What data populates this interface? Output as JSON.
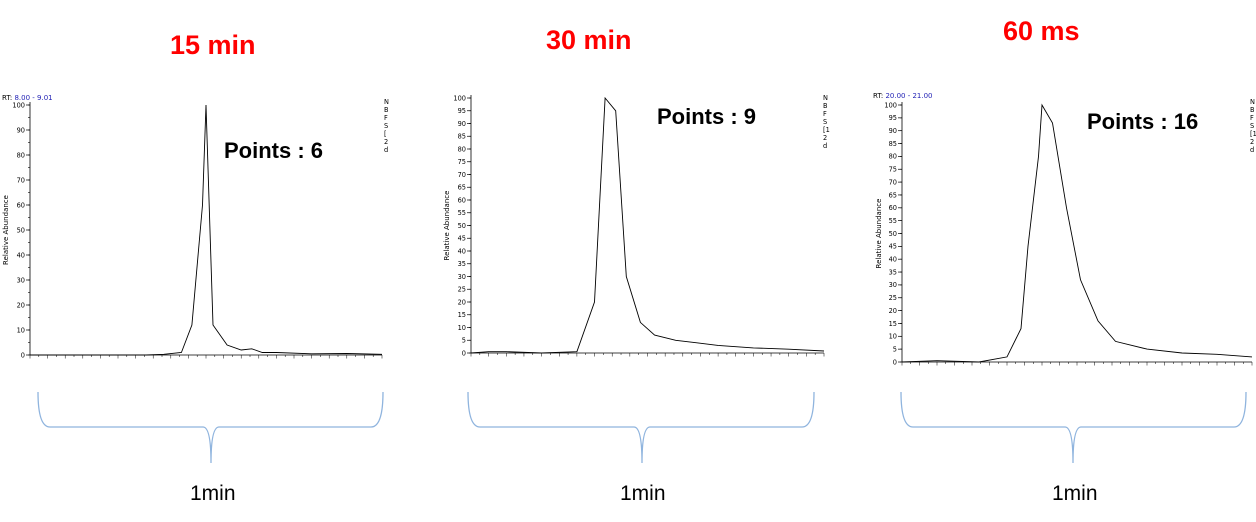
{
  "chart_data": [
    {
      "type": "line",
      "title": "15 min",
      "annotation": "Points : 6",
      "ylabel": "Relative Abundance",
      "rt_label": "RT:",
      "rt_range": "8.00 - 9.01",
      "x_span_label": "1min",
      "legend_glyphs": [
        "N",
        "B",
        "F",
        "S",
        "[",
        "2",
        "d"
      ],
      "ylim": [
        0,
        100
      ],
      "yticks": [
        "0",
        "10",
        "20",
        "30",
        "40",
        "50",
        "60",
        "70",
        "80",
        "90",
        "100"
      ],
      "y_minor_ticks": [
        0,
        5,
        10,
        15,
        20,
        25,
        30,
        35,
        40,
        45,
        50,
        55,
        60,
        65,
        70,
        75,
        80,
        85,
        90,
        95,
        100
      ],
      "xlim": [
        0,
        1
      ],
      "series": [
        {
          "x": [
            0.0,
            0.3,
            0.33,
            0.38,
            0.43,
            0.46,
            0.49,
            0.5,
            0.52,
            0.56,
            0.6,
            0.63,
            0.66,
            0.7,
            0.8,
            0.9,
            1.0
          ],
          "y": [
            0,
            0,
            0,
            0.3,
            1,
            12,
            60,
            100,
            12,
            4,
            2,
            2.5,
            1,
            1,
            0.5,
            0.6,
            0.3
          ]
        }
      ]
    },
    {
      "type": "line",
      "title": "30 min",
      "annotation": "Points : 9",
      "ylabel": "Relative Abundance",
      "rt_label": "",
      "rt_range": "",
      "x_span_label": "1min",
      "legend_glyphs": [
        "N",
        "B",
        "F",
        "S",
        "[1",
        "2",
        "d"
      ],
      "ylim": [
        0,
        100
      ],
      "yticks": [
        "0",
        "5",
        "10",
        "15",
        "20",
        "25",
        "30",
        "35",
        "40",
        "45",
        "50",
        "55",
        "60",
        "65",
        "70",
        "75",
        "80",
        "85",
        "90",
        "95",
        "100"
      ],
      "y_minor_ticks": [
        0,
        5,
        10,
        15,
        20,
        25,
        30,
        35,
        40,
        45,
        50,
        55,
        60,
        65,
        70,
        75,
        80,
        85,
        90,
        95,
        100
      ],
      "xlim": [
        0,
        1
      ],
      "series": [
        {
          "x": [
            0.0,
            0.05,
            0.1,
            0.2,
            0.3,
            0.35,
            0.38,
            0.41,
            0.44,
            0.48,
            0.52,
            0.58,
            0.64,
            0.7,
            0.8,
            0.9,
            1.0
          ],
          "y": [
            0,
            0.5,
            0.5,
            0,
            0.5,
            20,
            100,
            95,
            30,
            12,
            7,
            5,
            4,
            3,
            2,
            1.5,
            0.8
          ]
        }
      ]
    },
    {
      "type": "line",
      "title": "60 ms",
      "annotation": "Points : 16",
      "ylabel": "Relative Abundance",
      "rt_label": "RT:",
      "rt_range": "20.00 - 21.00",
      "x_span_label": "1min",
      "legend_glyphs": [
        "N",
        "B",
        "F",
        "S",
        "[1",
        "2",
        "d"
      ],
      "ylim": [
        0,
        100
      ],
      "yticks": [
        "0",
        "5",
        "10",
        "15",
        "20",
        "25",
        "30",
        "35",
        "40",
        "45",
        "50",
        "55",
        "60",
        "65",
        "70",
        "75",
        "80",
        "85",
        "90",
        "95",
        "100"
      ],
      "y_minor_ticks": [
        0,
        5,
        10,
        15,
        20,
        25,
        30,
        35,
        40,
        45,
        50,
        55,
        60,
        65,
        70,
        75,
        80,
        85,
        90,
        95,
        100
      ],
      "xlim": [
        0,
        1
      ],
      "series": [
        {
          "x": [
            0.0,
            0.1,
            0.22,
            0.3,
            0.34,
            0.36,
            0.39,
            0.4,
            0.43,
            0.47,
            0.51,
            0.56,
            0.61,
            0.7,
            0.8,
            0.9,
            1.0
          ],
          "y": [
            0,
            0.5,
            0,
            2,
            13,
            45,
            80,
            100,
            93,
            60,
            32,
            16,
            8,
            5,
            3.5,
            3,
            2
          ]
        }
      ]
    }
  ]
}
